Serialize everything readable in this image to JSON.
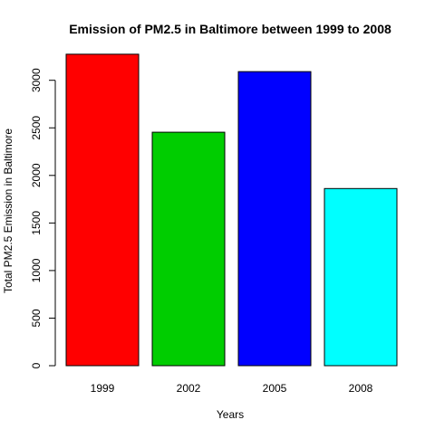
{
  "chart_data": {
    "type": "bar",
    "title": "Emission of PM2.5 in Baltimore between 1999 to 2008",
    "xlabel": "Years",
    "ylabel": "Total PM2.5 Emission in Baltimore",
    "categories": [
      "1999",
      "2002",
      "2005",
      "2008"
    ],
    "values": [
      3274,
      2454,
      3091,
      1862
    ],
    "colors": [
      "#ff0000",
      "#00cd00",
      "#0000ff",
      "#00ffff"
    ],
    "ylim": [
      0,
      3274
    ],
    "yticks": [
      0,
      500,
      1000,
      1500,
      2000,
      2500,
      3000
    ],
    "grid": false,
    "legend": "none"
  }
}
